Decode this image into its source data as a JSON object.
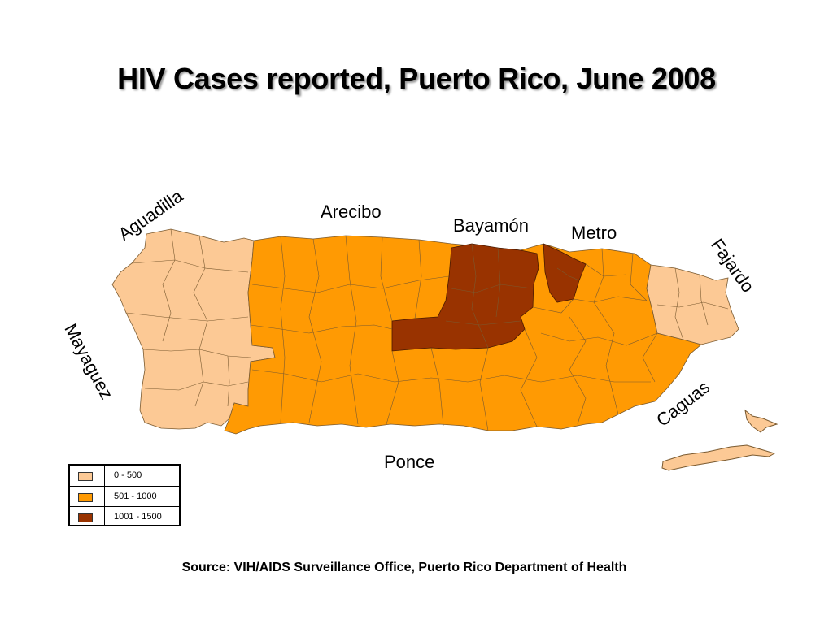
{
  "title": "HIV Cases reported, Puerto Rico, June 2008",
  "regions": [
    {
      "name": "Aguadilla",
      "class": "0 - 500"
    },
    {
      "name": "Arecibo",
      "class": "501 - 1000"
    },
    {
      "name": "Bayamón",
      "class": "1001 - 1500"
    },
    {
      "name": "Metro",
      "class": "1001 - 1500"
    },
    {
      "name": "Fajardo",
      "class": "0 - 500"
    },
    {
      "name": "Mayaguez",
      "class": "0 - 500"
    },
    {
      "name": "Caguas",
      "class": "501 - 1000"
    },
    {
      "name": "Ponce",
      "class": "501 - 1000"
    }
  ],
  "legend": [
    {
      "label": "0 - 500",
      "color": "#fcc995"
    },
    {
      "label": "501 - 1000",
      "color": "#ff9a03"
    },
    {
      "label": "1001 - 1500",
      "color": "#993300"
    }
  ],
  "colors": {
    "low": "#fcc995",
    "mid": "#ff9a03",
    "high": "#993300",
    "border": "#7a5a30"
  },
  "source": "Source: VIH/AIDS Surveillance Office, Puerto Rico Department of Health"
}
